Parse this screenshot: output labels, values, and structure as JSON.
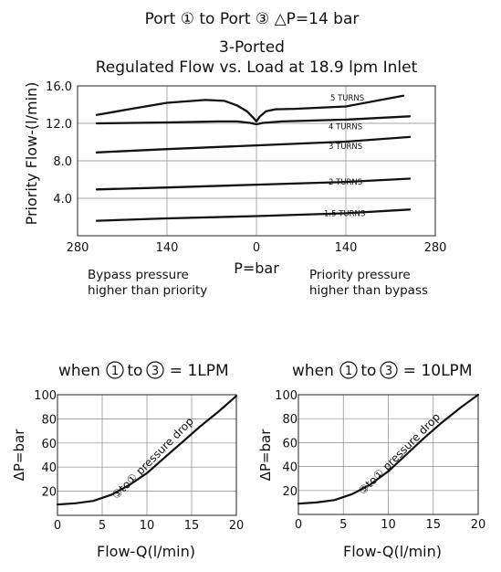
{
  "header": {
    "title": "Port ① to Port ③ △P=14 bar",
    "subtitle_1": "3-Ported",
    "subtitle_2": "Regulated Flow vs. Load at 18.9 lpm Inlet"
  },
  "chart_data": [
    {
      "type": "line",
      "ylabel": "Priority Flow-(l/min)",
      "xlabel": "P=bar",
      "ylim": [
        0,
        16
      ],
      "xlim": [
        -280,
        280
      ],
      "y_ticks": [
        "4.0",
        "8.0",
        "12.0",
        "16.0"
      ],
      "x_ticks": [
        "280",
        "140",
        "0",
        "140",
        "280"
      ],
      "grid": true,
      "annotation_left": [
        "Bypass pressure",
        "higher than priority"
      ],
      "annotation_right": [
        "Priority pressure",
        "higher than bypass"
      ],
      "series": [
        {
          "name": "1.5 TURNS",
          "x": [
            -250,
            -140,
            0,
            140,
            240
          ],
          "y": [
            1.6,
            1.85,
            2.1,
            2.4,
            2.8
          ]
        },
        {
          "name": "2 TURNS",
          "x": [
            -250,
            -140,
            0,
            140,
            240
          ],
          "y": [
            4.95,
            5.15,
            5.45,
            5.75,
            6.1
          ]
        },
        {
          "name": "3 TURNS",
          "x": [
            -250,
            -140,
            0,
            140,
            240
          ],
          "y": [
            8.9,
            9.25,
            9.65,
            10.05,
            10.55
          ]
        },
        {
          "name": "4 TURNS",
          "x": [
            -250,
            -140,
            -60,
            -30,
            -10,
            0,
            10,
            40,
            140,
            240
          ],
          "y": [
            12.0,
            12.1,
            12.2,
            12.2,
            12.05,
            11.9,
            12.05,
            12.2,
            12.4,
            12.75
          ]
        },
        {
          "name": "5 TURNS",
          "x": [
            -250,
            -200,
            -140,
            -80,
            -50,
            -30,
            -15,
            -5,
            0,
            5,
            15,
            30,
            60,
            140,
            230
          ],
          "y": [
            12.9,
            13.5,
            14.2,
            14.5,
            14.4,
            13.9,
            13.3,
            12.6,
            12.2,
            12.7,
            13.3,
            13.5,
            13.55,
            13.8,
            14.95
          ]
        }
      ]
    },
    {
      "type": "line",
      "title_pre": "when ",
      "title_circ_1": "1",
      "title_to": "to",
      "title_circ_2": "3",
      "title_post": " = 1LPM",
      "ylabel": "ΔP=bar",
      "xlabel": "Flow-Q(l/min)",
      "xlim": [
        0,
        20
      ],
      "ylim": [
        0,
        100
      ],
      "x_ticks": [
        "0",
        "5",
        "10",
        "15",
        "20"
      ],
      "y_ticks": [
        "20",
        "40",
        "60",
        "80",
        "100"
      ],
      "grid": true,
      "annotation": "③to① pressure drop",
      "series": [
        {
          "x": [
            0,
            2,
            4,
            6,
            8,
            10,
            12,
            14,
            16,
            18,
            20
          ],
          "y": [
            9,
            10,
            12,
            17,
            25,
            35,
            48,
            61,
            74,
            86,
            99
          ]
        }
      ]
    },
    {
      "type": "line",
      "title_pre": "when ",
      "title_circ_1": "1",
      "title_to": "to",
      "title_circ_2": "3",
      "title_post": " = 10LPM",
      "ylabel": "ΔP=bar",
      "xlabel": "Flow-Q(l/min)",
      "xlim": [
        0,
        20
      ],
      "ylim": [
        0,
        100
      ],
      "x_ticks": [
        "0",
        "5",
        "10",
        "15",
        "20"
      ],
      "y_ticks": [
        "20",
        "40",
        "60",
        "80",
        "100"
      ],
      "grid": true,
      "annotation": "③to① pressure drop",
      "series": [
        {
          "x": [
            0,
            2,
            4,
            6,
            8,
            10,
            12,
            14,
            16,
            18,
            20
          ],
          "y": [
            9,
            10,
            12,
            17,
            25,
            36,
            50,
            64,
            77,
            89,
            100
          ]
        }
      ]
    }
  ]
}
